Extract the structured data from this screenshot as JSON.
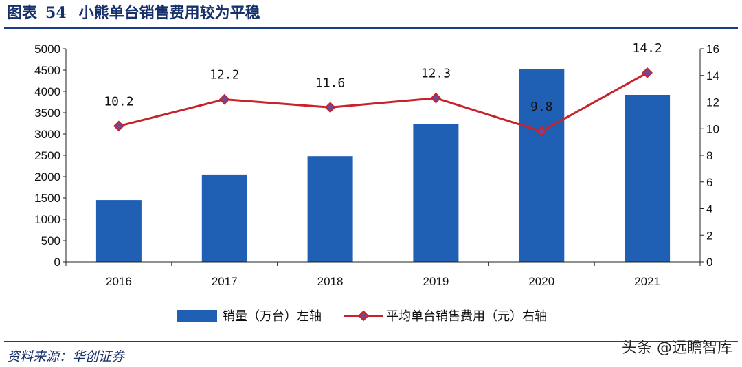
{
  "figure": {
    "label": "图表",
    "number": "54",
    "title": "小熊单台销售费用较为平稳"
  },
  "source": "资料来源：华创证券",
  "watermark": "头条 @远瞻智库",
  "colors": {
    "bar": "#1f5fb4",
    "line": "#c8232c",
    "marker_fill": "#6b4a9a",
    "rule": "#1a3a8a",
    "title": "#16306b"
  },
  "chart_data": {
    "type": "bar+line",
    "categories": [
      "2016",
      "2017",
      "2018",
      "2019",
      "2020",
      "2021"
    ],
    "series": [
      {
        "name": "销量（万台）左轴",
        "kind": "bar",
        "axis": "left",
        "values": [
          1450,
          2050,
          2480,
          3240,
          4530,
          3920
        ]
      },
      {
        "name": "平均单台销售费用（元）右轴",
        "kind": "line",
        "axis": "right",
        "values": [
          10.2,
          12.2,
          11.6,
          12.3,
          9.8,
          14.2
        ],
        "labels": [
          "10.2",
          "12.2",
          "11.6",
          "12.3",
          "9.8",
          "14.2"
        ]
      }
    ],
    "left_axis": {
      "min": 0,
      "max": 5000,
      "step": 500
    },
    "right_axis": {
      "min": 0,
      "max": 16,
      "step": 2
    },
    "grid": false,
    "legend_position": "bottom"
  }
}
